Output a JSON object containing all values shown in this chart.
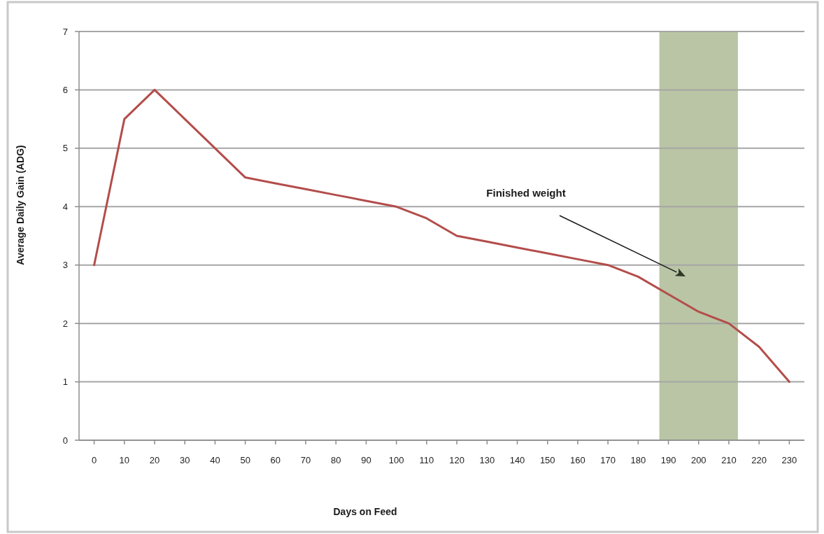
{
  "chart_data": {
    "type": "line",
    "xlabel": "Days on Feed",
    "ylabel": "Average Daily Gain (ADG)",
    "x": [
      0,
      10,
      20,
      30,
      40,
      50,
      60,
      70,
      80,
      90,
      100,
      110,
      120,
      130,
      140,
      150,
      160,
      170,
      180,
      190,
      200,
      210,
      220,
      230
    ],
    "series": [
      {
        "color": "#b34d4a",
        "values": [
          3,
          5.5,
          6,
          5.5,
          5,
          4.5,
          4.4,
          4.3,
          4.2,
          4.1,
          4,
          3.8,
          3.5,
          3.4,
          3.3,
          3.2,
          3.1,
          3,
          2.8,
          2.5,
          2.2,
          2,
          1.6,
          1
        ]
      }
    ],
    "xlim": [
      -5,
      235
    ],
    "xticks": [
      0,
      10,
      20,
      30,
      40,
      50,
      60,
      70,
      80,
      90,
      100,
      110,
      120,
      130,
      140,
      150,
      160,
      170,
      180,
      190,
      200,
      210,
      220,
      230
    ],
    "ylim": [
      0,
      7
    ],
    "yticks": [
      0,
      1,
      2,
      3,
      4,
      5,
      6,
      7
    ],
    "grid": "y",
    "bands": [
      {
        "axis": "x",
        "from": 187,
        "to": 213,
        "color": "#b9c5a4"
      }
    ],
    "annotations": [
      "Finished weight"
    ]
  }
}
